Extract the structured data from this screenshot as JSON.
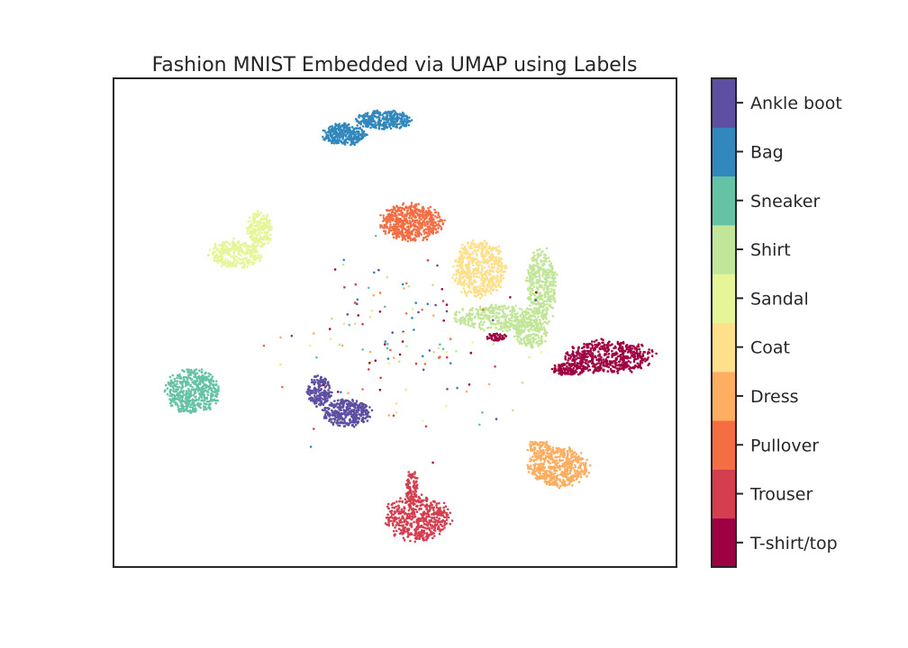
{
  "chart_data": {
    "type": "scatter",
    "title": "Fashion MNIST Embedded via UMAP using Labels",
    "xlabel": "",
    "ylabel": "",
    "xlim": [
      0,
      100
    ],
    "ylim": [
      0,
      100
    ],
    "axis_ticks": false,
    "grid": false,
    "legend": "colorbar-right",
    "colormap": "Spectral",
    "series": [
      {
        "name": "T-shirt/top",
        "color": "#9e0142",
        "clusters": [
          {
            "cx": 88,
            "cy": 43,
            "rx": 7.8,
            "ry": 3.4,
            "n": 520
          },
          {
            "cx": 81,
            "cy": 40.5,
            "rx": 3.2,
            "ry": 1.3,
            "n": 140
          },
          {
            "cx": 68,
            "cy": 47,
            "rx": 1.8,
            "ry": 0.8,
            "n": 50
          }
        ]
      },
      {
        "name": "Trouser",
        "color": "#d53e4f",
        "clusters": [
          {
            "cx": 54,
            "cy": 10,
            "rx": 5.8,
            "ry": 4.6,
            "n": 520
          },
          {
            "cx": 53,
            "cy": 16.5,
            "rx": 1.1,
            "ry": 3.5,
            "n": 90
          }
        ]
      },
      {
        "name": "Pullover",
        "color": "#f46d43",
        "clusters": [
          {
            "cx": 53,
            "cy": 70.5,
            "rx": 5.6,
            "ry": 3.8,
            "n": 560
          }
        ]
      },
      {
        "name": "Dress",
        "color": "#fdae61",
        "clusters": [
          {
            "cx": 79,
            "cy": 20.5,
            "rx": 5.3,
            "ry": 4.1,
            "n": 540
          },
          {
            "cx": 75.5,
            "cy": 24.5,
            "rx": 2.0,
            "ry": 1.6,
            "n": 60
          }
        ]
      },
      {
        "name": "Coat",
        "color": "#fee08b",
        "clusters": [
          {
            "cx": 65,
            "cy": 61,
            "rx": 4.6,
            "ry": 5.8,
            "n": 560
          }
        ]
      },
      {
        "name": "Sandal",
        "color": "#e6f598",
        "clusters": [
          {
            "cx": 21.5,
            "cy": 64,
            "rx": 4.6,
            "ry": 3.0,
            "n": 300
          },
          {
            "cx": 26,
            "cy": 69,
            "rx": 2.2,
            "ry": 3.6,
            "n": 200
          }
        ]
      },
      {
        "name": "Shirt",
        "color": "#c2e699",
        "clusters": [
          {
            "cx": 69,
            "cy": 51,
            "rx": 8.5,
            "ry": 2.6,
            "n": 380
          },
          {
            "cx": 76,
            "cy": 58,
            "rx": 2.6,
            "ry": 7.0,
            "n": 420
          },
          {
            "cx": 74,
            "cy": 48,
            "rx": 3.0,
            "ry": 3.0,
            "n": 200
          }
        ]
      },
      {
        "name": "Sneaker",
        "color": "#66c2a5",
        "clusters": [
          {
            "cx": 14,
            "cy": 36,
            "rx": 4.8,
            "ry": 4.4,
            "n": 500
          }
        ]
      },
      {
        "name": "Bag",
        "color": "#3288bd",
        "clusters": [
          {
            "cx": 41,
            "cy": 88.5,
            "rx": 3.8,
            "ry": 2.2,
            "n": 320
          },
          {
            "cx": 48,
            "cy": 91.5,
            "rx": 5.2,
            "ry": 1.9,
            "n": 320
          }
        ]
      },
      {
        "name": "Ankle boot",
        "color": "#5e4fa2",
        "clusters": [
          {
            "cx": 36.5,
            "cy": 36,
            "rx": 2.2,
            "ry": 3.2,
            "n": 180
          },
          {
            "cx": 41.5,
            "cy": 31.5,
            "rx": 4.2,
            "ry": 2.8,
            "n": 380
          }
        ]
      }
    ],
    "scattered_points": 140,
    "colorbar": {
      "ticks": [
        "T-shirt/top",
        "Trouser",
        "Pullover",
        "Dress",
        "Coat",
        "Sandal",
        "Shirt",
        "Sneaker",
        "Bag",
        "Ankle boot"
      ]
    }
  }
}
